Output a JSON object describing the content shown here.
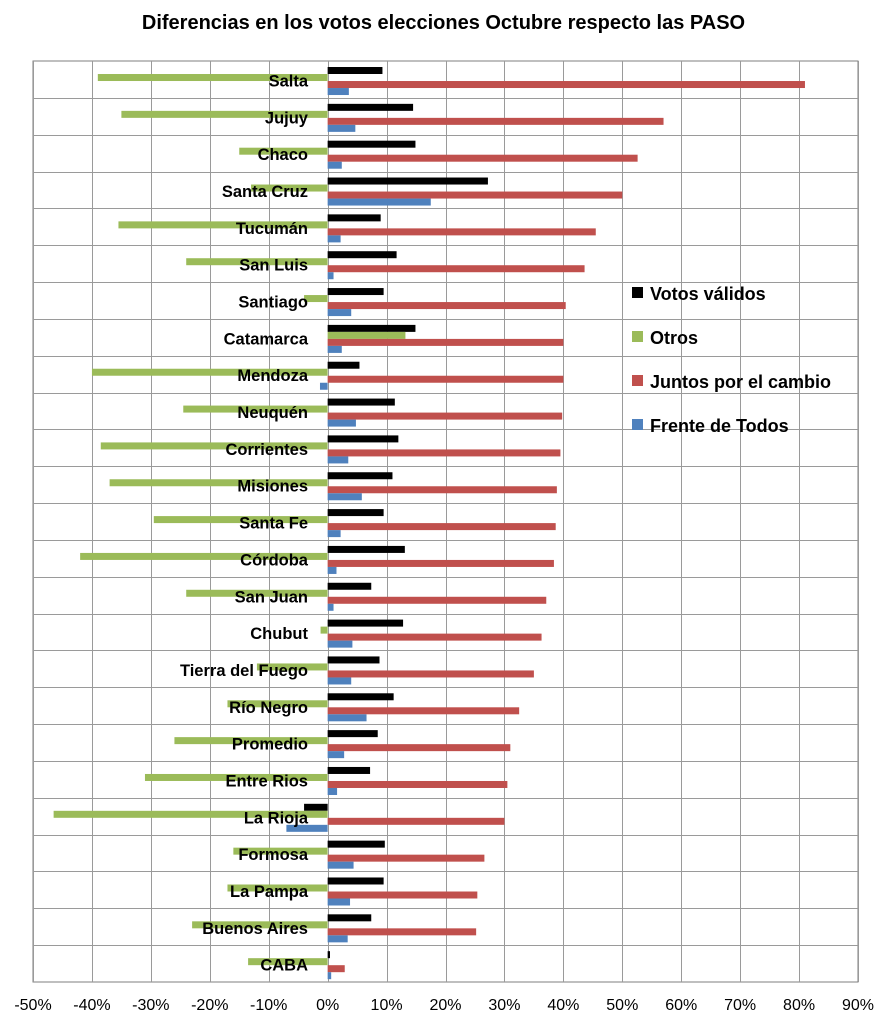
{
  "chart_data": {
    "type": "bar",
    "orientation": "horizontal",
    "title": "Diferencias en los votos elecciones Octubre respecto las PASO",
    "xlabel": "",
    "ylabel": "",
    "xlim": [
      -0.5,
      0.9
    ],
    "x_ticks": [
      -0.5,
      -0.4,
      -0.3,
      -0.2,
      -0.1,
      0,
      0.1,
      0.2,
      0.3,
      0.4,
      0.5,
      0.6,
      0.7,
      0.8,
      0.9
    ],
    "x_tick_labels": [
      "-50%",
      "-40%",
      "-30%",
      "-20%",
      "-10%",
      "0%",
      "10%",
      "20%",
      "30%",
      "40%",
      "50%",
      "60%",
      "70%",
      "80%",
      "90%"
    ],
    "grid": true,
    "legend_position": "right",
    "categories": [
      "Salta",
      "Jujuy",
      "Chaco",
      "Santa Cruz",
      "Tucumán",
      "San Luis",
      "Santiago",
      "Catamarca",
      "Mendoza",
      "Neuquén",
      "Corrientes",
      "Misiones",
      "Santa Fe",
      "Córdoba",
      "San Juan",
      "Chubut",
      "Tierra del Fuego",
      "Río Negro",
      "Promedio",
      "Entre Rios",
      "La Rioja",
      "Formosa",
      "La Pampa",
      "Buenos Aires",
      "CABA"
    ],
    "series": [
      {
        "name": "Votos válidos",
        "color": "#000000",
        "values": [
          0.093,
          0.145,
          0.149,
          0.272,
          0.09,
          0.117,
          0.095,
          0.149,
          0.054,
          0.114,
          0.12,
          0.11,
          0.095,
          0.131,
          0.074,
          0.128,
          0.088,
          0.112,
          0.085,
          0.072,
          -0.04,
          0.097,
          0.095,
          0.074,
          0.004
        ]
      },
      {
        "name": "Otros",
        "color": "#9bbb59",
        "values": [
          -0.39,
          -0.35,
          -0.15,
          -0.13,
          -0.355,
          -0.24,
          -0.04,
          0.132,
          -0.4,
          -0.245,
          -0.385,
          -0.37,
          -0.295,
          -0.42,
          -0.24,
          -0.012,
          -0.12,
          -0.17,
          -0.26,
          -0.31,
          -0.465,
          -0.16,
          -0.17,
          -0.23,
          -0.135
        ]
      },
      {
        "name": "Juntos por el cambio",
        "color": "#c0504d",
        "values": [
          0.81,
          0.57,
          0.526,
          0.5,
          0.455,
          0.436,
          0.404,
          0.4,
          0.4,
          0.398,
          0.395,
          0.389,
          0.387,
          0.384,
          0.371,
          0.363,
          0.35,
          0.325,
          0.31,
          0.305,
          0.3,
          0.266,
          0.254,
          0.252,
          0.029
        ]
      },
      {
        "name": "Frente de Todos",
        "color": "#4f81bd",
        "values": [
          0.036,
          0.047,
          0.024,
          0.175,
          0.022,
          0.01,
          0.04,
          0.024,
          -0.013,
          0.048,
          0.035,
          0.058,
          0.022,
          0.015,
          0.01,
          0.042,
          0.04,
          0.066,
          0.028,
          0.016,
          -0.07,
          0.044,
          0.038,
          0.034,
          0.006
        ]
      }
    ],
    "legend_order": [
      "Votos válidos",
      "Otros",
      "Juntos por el cambio",
      "Frente de Todos"
    ]
  }
}
